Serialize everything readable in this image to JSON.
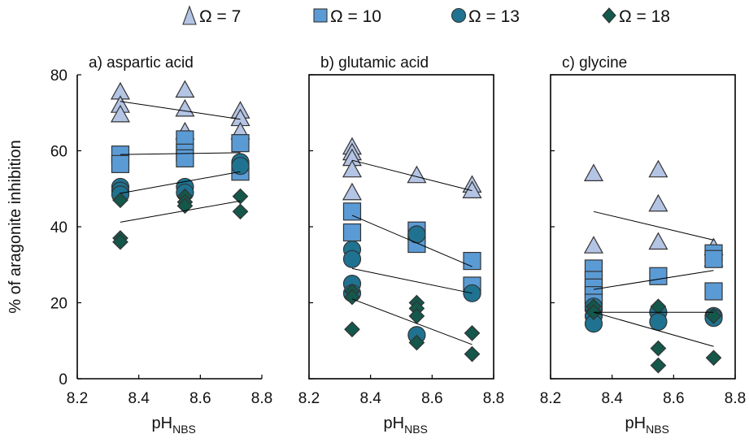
{
  "legend": [
    {
      "label": "Ω = 7",
      "marker": "triangle",
      "color": "#b4c4e4"
    },
    {
      "label": "Ω = 10",
      "marker": "square",
      "color": "#5b9bd5"
    },
    {
      "label": "Ω = 13",
      "marker": "circle",
      "color": "#1f7391"
    },
    {
      "label": "Ω = 18",
      "marker": "diamond",
      "color": "#14574b"
    }
  ],
  "y_axis": {
    "label": "% of aragonite inhibition",
    "ticks": [
      "0",
      "20",
      "40",
      "60",
      "80"
    ]
  },
  "x_axis": {
    "label_main": "pH",
    "label_sub": "NBS",
    "ticks": [
      "8.2",
      "8.4",
      "8.6",
      "8.8"
    ]
  },
  "chart_data": [
    {
      "type": "scatter",
      "title": "a) aspartic acid",
      "xlabel": "pHNBS",
      "ylabel": "% of aragonite inhibition",
      "xlim": [
        8.2,
        8.8
      ],
      "ylim": [
        0,
        80
      ],
      "boxed": false,
      "series": [
        {
          "name": "Ω = 7",
          "points": [
            [
              8.34,
              75.5
            ],
            [
              8.34,
              72
            ],
            [
              8.34,
              69.5
            ],
            [
              8.55,
              76
            ],
            [
              8.55,
              71
            ],
            [
              8.55,
              65
            ],
            [
              8.73,
              70.5
            ],
            [
              8.73,
              68.5
            ],
            [
              8.73,
              65
            ]
          ],
          "fit": [
            [
              8.34,
              73
            ],
            [
              8.73,
              68.3
            ]
          ]
        },
        {
          "name": "Ω = 10",
          "points": [
            [
              8.34,
              59
            ],
            [
              8.34,
              56.5
            ],
            [
              8.55,
              63
            ],
            [
              8.55,
              59.5
            ],
            [
              8.55,
              58
            ],
            [
              8.73,
              62
            ],
            [
              8.73,
              54.5
            ]
          ],
          "fit": [
            [
              8.34,
              59
            ],
            [
              8.73,
              59.5
            ]
          ]
        },
        {
          "name": "Ω = 13",
          "points": [
            [
              8.34,
              50.5
            ],
            [
              8.34,
              49.5
            ],
            [
              8.34,
              48.5
            ],
            [
              8.55,
              50.5
            ],
            [
              8.55,
              49
            ],
            [
              8.73,
              57
            ],
            [
              8.73,
              56
            ]
          ],
          "fit": [
            [
              8.34,
              48.8
            ],
            [
              8.73,
              54.5
            ]
          ]
        },
        {
          "name": "Ω = 18",
          "points": [
            [
              8.34,
              47
            ],
            [
              8.34,
              37
            ],
            [
              8.34,
              36
            ],
            [
              8.55,
              48
            ],
            [
              8.55,
              46.5
            ],
            [
              8.55,
              45.5
            ],
            [
              8.73,
              48
            ],
            [
              8.73,
              44
            ]
          ],
          "fit": [
            [
              8.34,
              41.2
            ],
            [
              8.73,
              46.8
            ]
          ]
        }
      ]
    },
    {
      "type": "scatter",
      "title": "b) glutamic acid",
      "xlabel": "pHNBS",
      "ylabel": "% of aragonite inhibition",
      "xlim": [
        8.2,
        8.8
      ],
      "ylim": [
        0,
        80
      ],
      "boxed": true,
      "series": [
        {
          "name": "Ω = 7",
          "points": [
            [
              8.34,
              61
            ],
            [
              8.34,
              59.5
            ],
            [
              8.34,
              58
            ],
            [
              8.34,
              55
            ],
            [
              8.34,
              49
            ],
            [
              8.55,
              53.5
            ],
            [
              8.73,
              51
            ],
            [
              8.73,
              49.5
            ]
          ],
          "fit": [
            [
              8.34,
              57.5
            ],
            [
              8.73,
              49.5
            ]
          ]
        },
        {
          "name": "Ω = 10",
          "points": [
            [
              8.34,
              44
            ],
            [
              8.34,
              38.5
            ],
            [
              8.55,
              39
            ],
            [
              8.55,
              35.5
            ],
            [
              8.73,
              31
            ],
            [
              8.73,
              24.5
            ]
          ],
          "fit": [
            [
              8.34,
              43
            ],
            [
              8.73,
              29.5
            ]
          ]
        },
        {
          "name": "Ω = 13",
          "points": [
            [
              8.34,
              34
            ],
            [
              8.34,
              31.5
            ],
            [
              8.34,
              25
            ],
            [
              8.34,
              22.5
            ],
            [
              8.55,
              38
            ],
            [
              8.55,
              11.5
            ],
            [
              8.73,
              22.5
            ]
          ],
          "fit": [
            [
              8.34,
              29
            ],
            [
              8.73,
              22.5
            ]
          ]
        },
        {
          "name": "Ω = 18",
          "points": [
            [
              8.34,
              23
            ],
            [
              8.34,
              21.5
            ],
            [
              8.34,
              13
            ],
            [
              8.55,
              20
            ],
            [
              8.55,
              18.5
            ],
            [
              8.55,
              16.5
            ],
            [
              8.55,
              9.5
            ],
            [
              8.73,
              12
            ],
            [
              8.73,
              6.5
            ]
          ],
          "fit": [
            [
              8.34,
              21
            ],
            [
              8.73,
              9
            ]
          ]
        }
      ]
    },
    {
      "type": "scatter",
      "title": "c) glycine",
      "xlabel": "pHNBS",
      "ylabel": "% of aragonite inhibition",
      "xlim": [
        8.2,
        8.8
      ],
      "ylim": [
        0,
        80
      ],
      "boxed": true,
      "series": [
        {
          "name": "Ω = 7",
          "points": [
            [
              8.34,
              54
            ],
            [
              8.34,
              35
            ],
            [
              8.55,
              55
            ],
            [
              8.55,
              46
            ],
            [
              8.55,
              36
            ],
            [
              8.73,
              34.5
            ],
            [
              8.73,
              31.5
            ]
          ],
          "fit": [
            [
              8.34,
              44
            ],
            [
              8.73,
              36.5
            ]
          ]
        },
        {
          "name": "Ω = 10",
          "points": [
            [
              8.34,
              29
            ],
            [
              8.34,
              26
            ],
            [
              8.34,
              24
            ],
            [
              8.34,
              22
            ],
            [
              8.34,
              20
            ],
            [
              8.55,
              27
            ],
            [
              8.73,
              33
            ],
            [
              8.73,
              31.5
            ],
            [
              8.73,
              23
            ]
          ],
          "fit": [
            [
              8.34,
              23.5
            ],
            [
              8.73,
              28.5
            ]
          ]
        },
        {
          "name": "Ω = 13",
          "points": [
            [
              8.34,
              19
            ],
            [
              8.34,
              16.5
            ],
            [
              8.34,
              14.5
            ],
            [
              8.55,
              17.5
            ],
            [
              8.55,
              15
            ],
            [
              8.73,
              16.5
            ],
            [
              8.73,
              16
            ]
          ],
          "fit": [
            [
              8.34,
              17.5
            ],
            [
              8.73,
              17.5
            ]
          ]
        },
        {
          "name": "Ω = 18",
          "points": [
            [
              8.34,
              19
            ],
            [
              8.34,
              17.5
            ],
            [
              8.55,
              19
            ],
            [
              8.55,
              8
            ],
            [
              8.55,
              3.5
            ],
            [
              8.73,
              16.5
            ],
            [
              8.73,
              5.5
            ]
          ],
          "fit": [
            [
              8.34,
              17.5
            ],
            [
              8.73,
              8.5
            ]
          ]
        }
      ]
    }
  ]
}
